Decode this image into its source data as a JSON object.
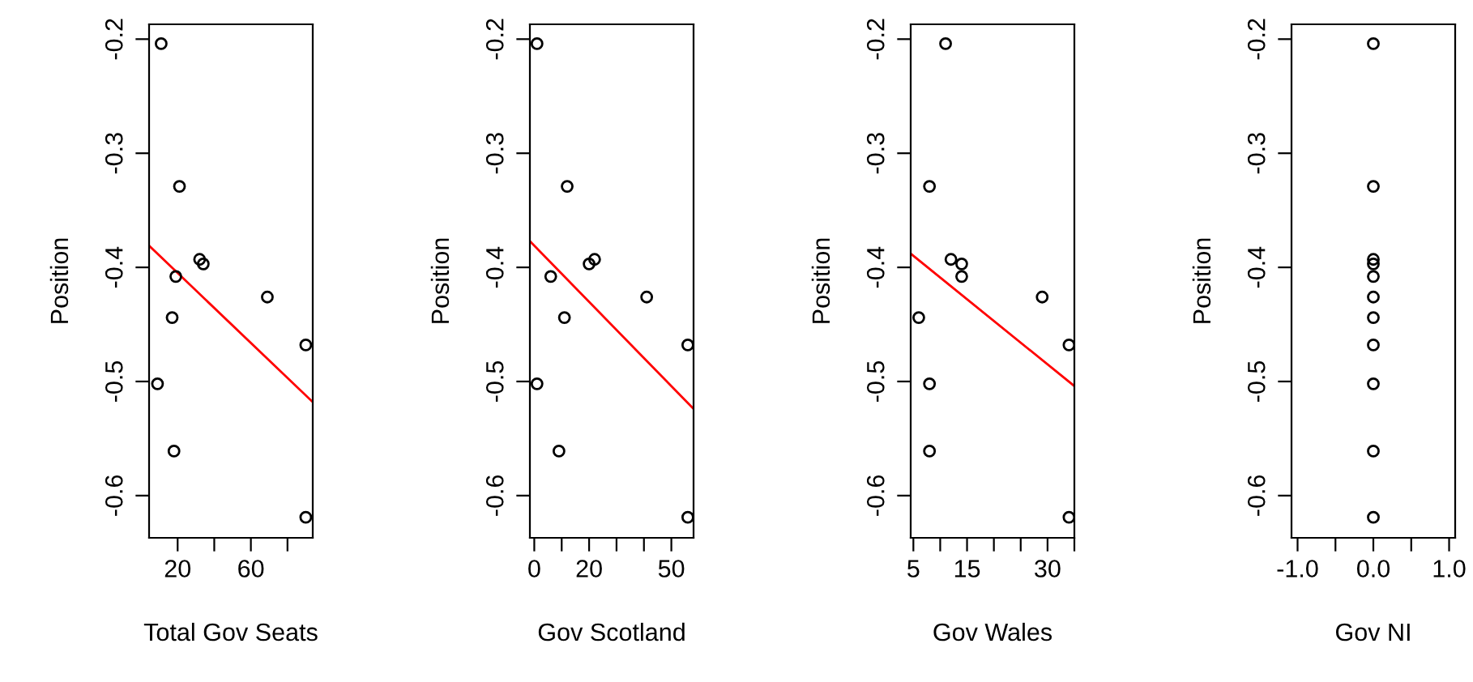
{
  "chart_data": [
    {
      "type": "scatter",
      "xlabel": "Total Gov Seats",
      "ylabel": "Position",
      "xlim": [
        4.4,
        93.8
      ],
      "ylim": [
        -0.637,
        -0.187
      ],
      "xticks": [
        20,
        {
          "value": 40,
          "label": null
        },
        60,
        {
          "value": 80,
          "label": null
        }
      ],
      "yticks": [
        -0.2,
        -0.3,
        -0.4,
        -0.5,
        -0.6
      ],
      "grid": false,
      "legend": false,
      "series": [
        {
          "marker": "circle",
          "color": "#000000",
          "x": [
            11,
            21,
            32,
            34,
            19,
            69,
            17,
            90,
            9,
            18,
            90
          ],
          "values": [
            -0.204,
            -0.329,
            -0.393,
            -0.397,
            -0.408,
            -0.426,
            -0.444,
            -0.468,
            -0.502,
            -0.561,
            -0.619
          ]
        },
        {
          "type": "line",
          "marker": "none",
          "color": "#ff0000",
          "x": [
            4.4,
            93.8
          ],
          "values": [
            -0.381,
            -0.518
          ]
        }
      ]
    },
    {
      "type": "scatter",
      "xlabel": "Gov Scotland",
      "ylabel": "Position",
      "xlim": [
        -1.6,
        58.1
      ],
      "ylim": [
        -0.637,
        -0.187
      ],
      "xticks": [
        0,
        {
          "value": 10,
          "label": null
        },
        20,
        {
          "value": 30,
          "label": null
        },
        {
          "value": 40,
          "label": null
        },
        50
      ],
      "yticks": [
        -0.2,
        -0.3,
        -0.4,
        -0.5,
        -0.6
      ],
      "grid": false,
      "legend": false,
      "series": [
        {
          "marker": "circle",
          "color": "#000000",
          "x": [
            1,
            12,
            22,
            20,
            6,
            41,
            11,
            56,
            1,
            9,
            56
          ],
          "values": [
            -0.204,
            -0.329,
            -0.393,
            -0.397,
            -0.408,
            -0.426,
            -0.444,
            -0.468,
            -0.502,
            -0.561,
            -0.619
          ]
        },
        {
          "type": "line",
          "marker": "none",
          "color": "#ff0000",
          "x": [
            -1.6,
            58.1
          ],
          "values": [
            -0.377,
            -0.524
          ]
        }
      ]
    },
    {
      "type": "scatter",
      "xlabel": "Gov Wales",
      "ylabel": "Position",
      "xlim": [
        4.5,
        35
      ],
      "ylim": [
        -0.637,
        -0.187
      ],
      "xticks": [
        5,
        {
          "value": 10,
          "label": null
        },
        15,
        {
          "value": 20,
          "label": null
        },
        {
          "value": 25,
          "label": null
        },
        30,
        {
          "value": 35,
          "label": null
        }
      ],
      "yticks": [
        -0.2,
        -0.3,
        -0.4,
        -0.5,
        -0.6
      ],
      "grid": false,
      "legend": false,
      "series": [
        {
          "marker": "circle",
          "color": "#000000",
          "x": [
            11,
            8,
            12,
            14,
            14,
            29,
            6,
            34,
            8,
            8,
            34
          ],
          "values": [
            -0.204,
            -0.329,
            -0.393,
            -0.397,
            -0.408,
            -0.426,
            -0.444,
            -0.468,
            -0.502,
            -0.561,
            -0.619
          ]
        },
        {
          "type": "line",
          "marker": "none",
          "color": "#ff0000",
          "x": [
            4.5,
            35
          ],
          "values": [
            -0.388,
            -0.504
          ]
        }
      ]
    },
    {
      "type": "scatter",
      "xlabel": "Gov NI",
      "ylabel": "Position",
      "xlim": [
        -1.08,
        1.08
      ],
      "ylim": [
        -0.637,
        -0.187
      ],
      "xticks": [
        {
          "value": -1,
          "label": "-1.0"
        },
        {
          "value": -0.5,
          "label": null
        },
        {
          "value": 0,
          "label": "0.0"
        },
        {
          "value": 0.5,
          "label": null
        },
        {
          "value": 1,
          "label": "1.0"
        }
      ],
      "yticks": [
        -0.2,
        -0.3,
        -0.4,
        -0.5,
        -0.6
      ],
      "grid": false,
      "legend": false,
      "series": [
        {
          "marker": "circle",
          "color": "#000000",
          "x": [
            0,
            0,
            0,
            0,
            0,
            0,
            0,
            0,
            0,
            0,
            0
          ],
          "values": [
            -0.204,
            -0.329,
            -0.393,
            -0.397,
            -0.408,
            -0.426,
            -0.444,
            -0.468,
            -0.502,
            -0.561,
            -0.619
          ]
        }
      ]
    }
  ]
}
